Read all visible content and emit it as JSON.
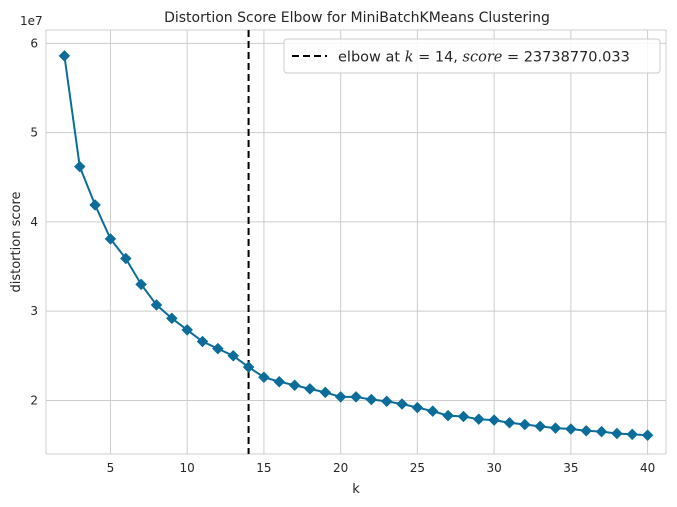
{
  "chart_data": {
    "type": "line",
    "title": "Distortion Score Elbow for MiniBatchKMeans Clustering",
    "xlabel": "k",
    "ylabel": "distortion score",
    "y_offset_label": "1e7",
    "xlim": [
      0.8,
      41.2
    ],
    "ylim": [
      14000000,
      61500000
    ],
    "x_ticks": [
      5,
      10,
      15,
      20,
      25,
      30,
      35,
      40
    ],
    "y_ticks": [
      20000000,
      30000000,
      40000000,
      50000000,
      60000000
    ],
    "y_tick_labels": [
      "2",
      "3",
      "4",
      "5",
      "6"
    ],
    "grid": true,
    "legend_position": "top-right",
    "series": [
      {
        "color": "#0c6d9a",
        "marker": "diamond",
        "x": [
          2,
          3,
          4,
          5,
          6,
          7,
          8,
          9,
          10,
          11,
          12,
          13,
          14,
          15,
          16,
          17,
          18,
          19,
          20,
          21,
          22,
          23,
          24,
          25,
          26,
          27,
          28,
          29,
          30,
          31,
          32,
          33,
          34,
          35,
          36,
          37,
          38,
          39,
          40
        ],
        "values": [
          58600000,
          46200000,
          41900000,
          38100000,
          35900000,
          33000000,
          30700000,
          29200000,
          27900000,
          26600000,
          25800000,
          25000000,
          23738770.033,
          22600000,
          22100000,
          21700000,
          21300000,
          20900000,
          20400000,
          20400000,
          20100000,
          19900000,
          19600000,
          19200000,
          18800000,
          18300000,
          18200000,
          17900000,
          17800000,
          17500000,
          17300000,
          17100000,
          16900000,
          16800000,
          16600000,
          16500000,
          16300000,
          16200000,
          16100000
        ]
      }
    ],
    "annotation": {
      "type": "vline",
      "x": 14,
      "style": "dashed",
      "color": "#000000",
      "legend_label": {
        "prefix": "elbow at ",
        "k_var": "k",
        "k_eq": " = 14, ",
        "score_var": "score",
        "score_eq": " = 23738770.033"
      }
    }
  }
}
